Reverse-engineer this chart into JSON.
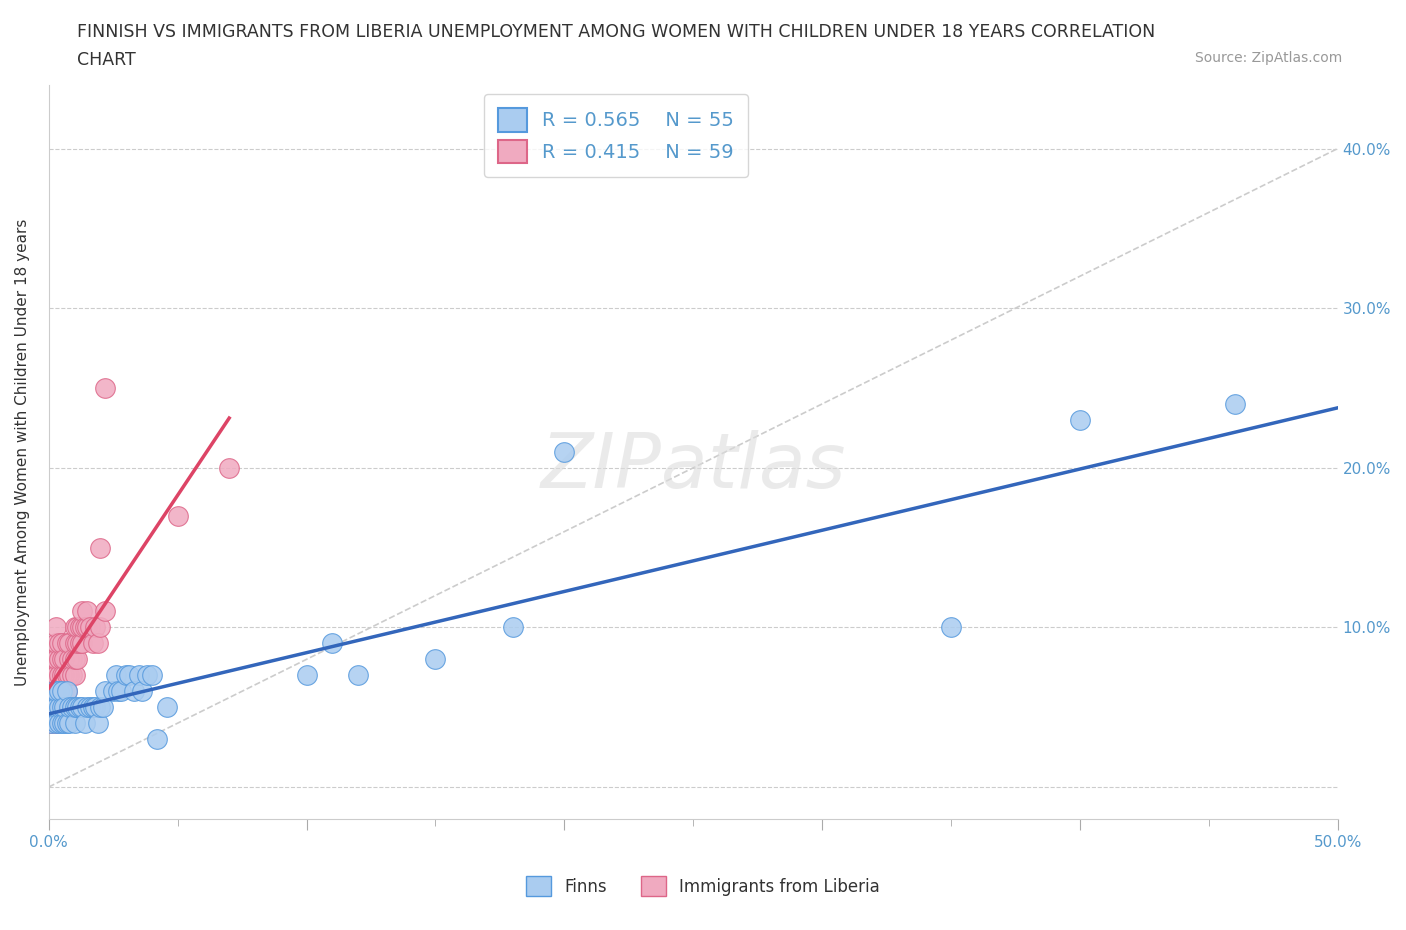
{
  "title_line1": "FINNISH VS IMMIGRANTS FROM LIBERIA UNEMPLOYMENT AMONG WOMEN WITH CHILDREN UNDER 18 YEARS CORRELATION",
  "title_line2": "CHART",
  "source": "Source: ZipAtlas.com",
  "ylabel": "Unemployment Among Women with Children Under 18 years",
  "xlim": [
    0.0,
    0.5
  ],
  "ylim": [
    -0.02,
    0.44
  ],
  "xticks": [
    0.0,
    0.1,
    0.2,
    0.3,
    0.4,
    0.5
  ],
  "xticklabels": [
    "0.0%",
    "",
    "",
    "",
    "",
    "50.0%"
  ],
  "yticks": [
    0.0,
    0.1,
    0.2,
    0.3,
    0.4
  ],
  "yticklabels_right": [
    "",
    "10.0%",
    "20.0%",
    "30.0%",
    "40.0%"
  ],
  "finns_color": "#aaccf0",
  "liberia_color": "#f0aac0",
  "finns_edge_color": "#5599dd",
  "liberia_edge_color": "#dd6688",
  "finns_line_color": "#3366bb",
  "liberia_line_color": "#dd4466",
  "finns_R": 0.565,
  "finns_N": 55,
  "liberia_R": 0.415,
  "liberia_N": 59,
  "watermark": "ZIPatlas",
  "background_color": "#ffffff",
  "grid_color": "#cccccc",
  "tick_color": "#5599cc",
  "finns_x": [
    0.001,
    0.002,
    0.002,
    0.003,
    0.003,
    0.003,
    0.004,
    0.004,
    0.004,
    0.005,
    0.005,
    0.005,
    0.006,
    0.006,
    0.007,
    0.007,
    0.008,
    0.008,
    0.009,
    0.01,
    0.01,
    0.011,
    0.012,
    0.013,
    0.014,
    0.015,
    0.016,
    0.017,
    0.018,
    0.019,
    0.02,
    0.021,
    0.022,
    0.025,
    0.026,
    0.027,
    0.028,
    0.03,
    0.031,
    0.033,
    0.035,
    0.036,
    0.038,
    0.04,
    0.042,
    0.046,
    0.1,
    0.11,
    0.12,
    0.15,
    0.18,
    0.2,
    0.35,
    0.4,
    0.46
  ],
  "finns_y": [
    0.04,
    0.05,
    0.06,
    0.04,
    0.05,
    0.06,
    0.04,
    0.05,
    0.06,
    0.04,
    0.05,
    0.06,
    0.04,
    0.05,
    0.04,
    0.06,
    0.04,
    0.05,
    0.05,
    0.04,
    0.05,
    0.05,
    0.05,
    0.05,
    0.04,
    0.05,
    0.05,
    0.05,
    0.05,
    0.04,
    0.05,
    0.05,
    0.06,
    0.06,
    0.07,
    0.06,
    0.06,
    0.07,
    0.07,
    0.06,
    0.07,
    0.06,
    0.07,
    0.07,
    0.03,
    0.05,
    0.07,
    0.09,
    0.07,
    0.08,
    0.1,
    0.21,
    0.1,
    0.23,
    0.24
  ],
  "liberia_x": [
    0.001,
    0.001,
    0.002,
    0.002,
    0.002,
    0.002,
    0.003,
    0.003,
    0.003,
    0.003,
    0.003,
    0.003,
    0.003,
    0.004,
    0.004,
    0.004,
    0.004,
    0.004,
    0.005,
    0.005,
    0.005,
    0.005,
    0.005,
    0.006,
    0.006,
    0.006,
    0.007,
    0.007,
    0.007,
    0.008,
    0.008,
    0.008,
    0.009,
    0.009,
    0.01,
    0.01,
    0.01,
    0.01,
    0.011,
    0.011,
    0.011,
    0.012,
    0.012,
    0.013,
    0.013,
    0.013,
    0.014,
    0.015,
    0.015,
    0.016,
    0.017,
    0.018,
    0.019,
    0.02,
    0.02,
    0.022,
    0.022,
    0.05,
    0.07
  ],
  "liberia_y": [
    0.04,
    0.05,
    0.05,
    0.06,
    0.07,
    0.08,
    0.04,
    0.05,
    0.06,
    0.07,
    0.08,
    0.09,
    0.1,
    0.05,
    0.06,
    0.07,
    0.08,
    0.09,
    0.05,
    0.06,
    0.07,
    0.08,
    0.09,
    0.06,
    0.07,
    0.08,
    0.06,
    0.07,
    0.09,
    0.07,
    0.08,
    0.09,
    0.07,
    0.08,
    0.07,
    0.08,
    0.09,
    0.1,
    0.08,
    0.09,
    0.1,
    0.09,
    0.1,
    0.09,
    0.1,
    0.11,
    0.1,
    0.1,
    0.11,
    0.1,
    0.09,
    0.1,
    0.09,
    0.1,
    0.15,
    0.11,
    0.25,
    0.17,
    0.2
  ]
}
